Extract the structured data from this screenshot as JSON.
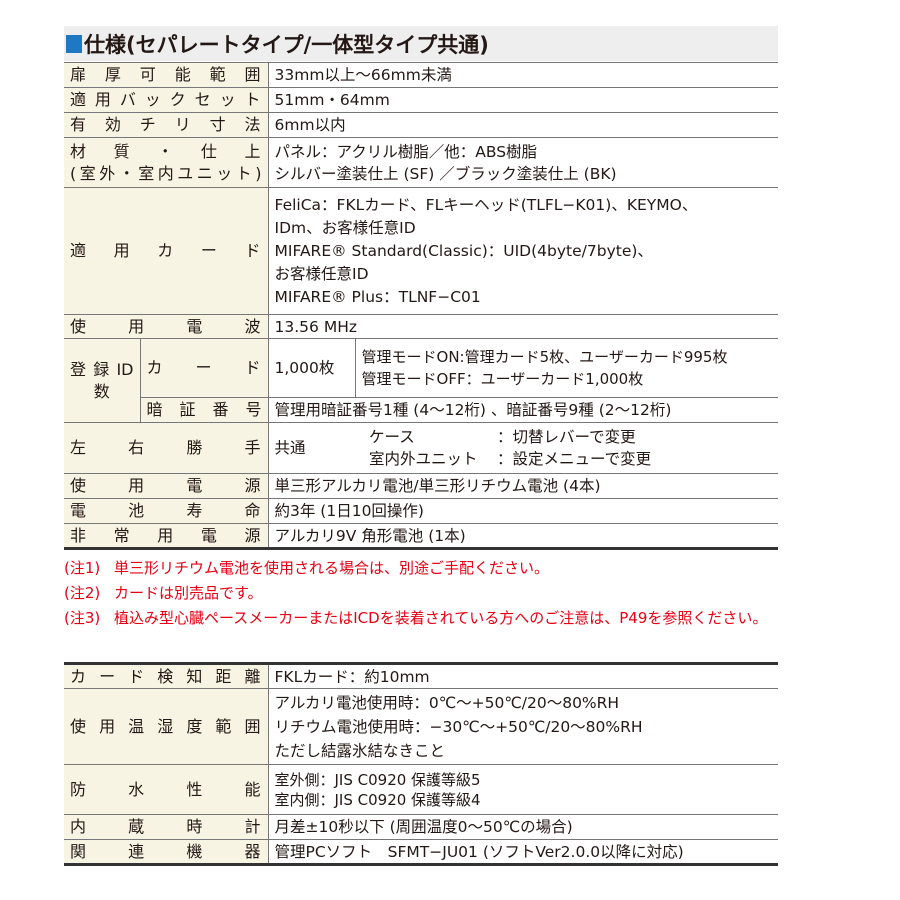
{
  "title": "仕様(セパレートタイプ/一体型タイプ共通)",
  "accent_color": "#1e78c2",
  "note_color": "#e60012",
  "spec": {
    "door_thickness": {
      "label": "扉厚可能範囲",
      "value": "33mm以上〜66mm未満"
    },
    "backset": {
      "label": "適用バックセット",
      "value": "51mm・64mm"
    },
    "chiri": {
      "label": "有効チリ寸法",
      "value": "6mm以内"
    },
    "material": {
      "label": "材質・仕上",
      "label2": "(室外・室内ユニット)",
      "lines": [
        "パネル：アクリル樹脂／他：ABS樹脂",
        "シルバー塗装仕上 (SF) ／ブラック塗装仕上 (BK)"
      ]
    },
    "cards": {
      "label": "適用カード",
      "lines": [
        "FeliCa：FKLカード、FLキーヘッド(TLFL−K01)、KEYMO、",
        "IDm、お客様任意ID",
        "MIFARE® Standard(Classic)：UID(4byte/7byte)、",
        "お客様任意ID",
        "MIFARE® Plus：TLNF−C01"
      ]
    },
    "radio": {
      "label": "使用電波",
      "value": "13.56 MHz"
    },
    "reg": {
      "label": "登録ID数",
      "card_label": "カード",
      "card_count": "1,000枚",
      "card_lines": [
        "管理モードON:管理カード5枚、ユーザーカード995枚",
        "管理モードOFF：ユーザーカード1,000枚"
      ],
      "pin_label": "暗証番号",
      "pin_value": "管理用暗証番号1種 (4〜12桁) 、暗証番号9種 (2〜12桁)"
    },
    "hand": {
      "label": "左右勝手",
      "common": "共通",
      "case_k": "ケース",
      "case_v": "：切替レバーで変更",
      "unit_k": "室内外ユニット",
      "unit_v": "：設定メニューで変更"
    },
    "power": {
      "label": "使用電源",
      "value": "単三形アルカリ電池/単三形リチウム電池 (4本)"
    },
    "life": {
      "label": "電池寿命",
      "value": "約3年 (1日10回操作)"
    },
    "emergency": {
      "label": "非常用電源",
      "value": "アルカリ9V 角形電池 (1本)"
    }
  },
  "notes": [
    {
      "n": "(注1)",
      "t": "単三形リチウム電池を使用される場合は、別途ご手配ください。"
    },
    {
      "n": "(注2)",
      "t": "カードは別売品です。"
    },
    {
      "n": "(注3)",
      "t": "植込み型心臓ペースメーカーまたはICDを装着されている方へのご注意は、P49を参照ください。"
    }
  ],
  "spec2": {
    "distance": {
      "label": "カード検知距離",
      "value": "FKLカード：約10mm"
    },
    "temp": {
      "label": "使用温湿度範囲",
      "lines": [
        "アルカリ電池使用時：0℃〜+50℃/20〜80%RH",
        "リチウム電池使用時：−30℃〜+50℃/20〜80%RH",
        "ただし結露氷結なきこと"
      ]
    },
    "water": {
      "label": "防水性能",
      "lines": [
        "室外側：JIS C0920 保護等級5",
        "室内側：JIS C0920 保護等級4"
      ]
    },
    "clock": {
      "label": "内蔵時計",
      "value": "月差±10秒以下 (周囲温度0〜50℃の場合)"
    },
    "related": {
      "label": "関連機器",
      "value": "管理PCソフト　SFMT−JU01 (ソフトVer2.0.0以降に対応)"
    }
  }
}
